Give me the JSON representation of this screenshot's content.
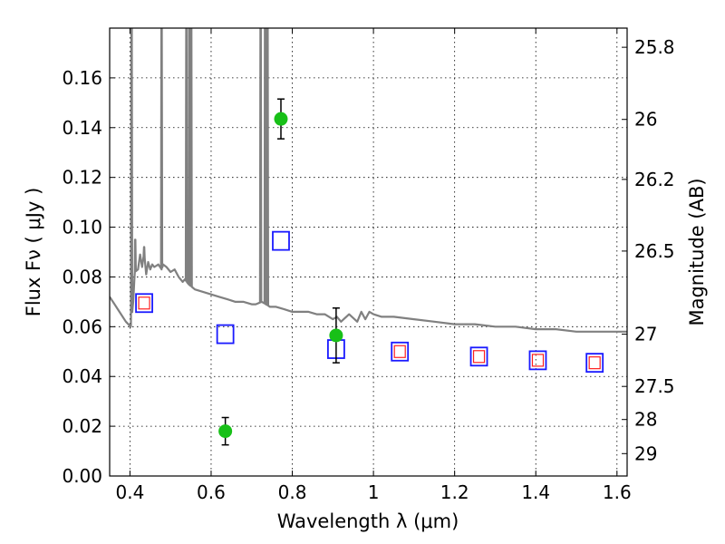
{
  "chart_data": {
    "type": "scatter",
    "xlabel": "Wavelength  λ (μm)",
    "ylabel": "Flux  Fν  ( μJy )",
    "y2label": "Magnitude (AB)",
    "xlim": [
      0.35,
      1.625
    ],
    "ylim": [
      0.0,
      0.18
    ],
    "xticks": [
      0.4,
      0.6,
      0.8,
      1.0,
      1.2,
      1.4,
      1.6
    ],
    "xtick_labels": [
      "0.4",
      "0.6",
      "0.8",
      "1",
      "1.2",
      "1.4",
      "1.6"
    ],
    "yticks": [
      0.0,
      0.02,
      0.04,
      0.06,
      0.08,
      0.1,
      0.12,
      0.14,
      0.16
    ],
    "ytick_labels": [
      "0.00",
      "0.02",
      "0.04",
      "0.06",
      "0.08",
      "0.10",
      "0.12",
      "0.14",
      "0.16"
    ],
    "y2ticks": [
      {
        "label": "25.8",
        "flux": 0.1723
      },
      {
        "label": "26",
        "flux": 0.1433
      },
      {
        "label": "26.2",
        "flux": 0.1192
      },
      {
        "label": "26.5",
        "flux": 0.0904
      },
      {
        "label": "27",
        "flux": 0.057
      },
      {
        "label": "27.5",
        "flux": 0.036
      },
      {
        "label": "28",
        "flux": 0.0227
      },
      {
        "label": "29",
        "flux": 0.009
      }
    ],
    "grid": true,
    "colors": {
      "model": "#808080",
      "observed": "#18c018",
      "model_photometry": "#1a1aff",
      "inner_photometry": "#ff2020"
    },
    "model_spectrum": {
      "x": [
        0.35,
        0.37,
        0.39,
        0.402,
        0.408,
        0.412,
        0.42,
        0.425,
        0.43,
        0.435,
        0.44,
        0.445,
        0.45,
        0.455,
        0.46,
        0.47,
        0.478,
        0.482,
        0.49,
        0.5,
        0.51,
        0.52,
        0.53,
        0.535,
        0.545,
        0.56,
        0.58,
        0.6,
        0.62,
        0.64,
        0.66,
        0.68,
        0.7,
        0.71,
        0.725,
        0.735,
        0.745,
        0.76,
        0.78,
        0.8,
        0.82,
        0.84,
        0.86,
        0.88,
        0.9,
        0.91,
        0.92,
        0.94,
        0.96,
        0.97,
        0.98,
        0.99,
        1.0,
        1.02,
        1.05,
        1.1,
        1.15,
        1.2,
        1.25,
        1.3,
        1.35,
        1.4,
        1.45,
        1.5,
        1.55,
        1.6,
        1.625
      ],
      "y": [
        0.072,
        0.067,
        0.062,
        0.06,
        0.07,
        0.082,
        0.083,
        0.089,
        0.084,
        0.09,
        0.081,
        0.086,
        0.083,
        0.085,
        0.084,
        0.085,
        0.083,
        0.085,
        0.084,
        0.082,
        0.083,
        0.08,
        0.078,
        0.079,
        0.077,
        0.075,
        0.074,
        0.073,
        0.072,
        0.071,
        0.07,
        0.07,
        0.069,
        0.069,
        0.07,
        0.069,
        0.068,
        0.068,
        0.067,
        0.066,
        0.066,
        0.066,
        0.065,
        0.065,
        0.063,
        0.064,
        0.062,
        0.065,
        0.062,
        0.066,
        0.063,
        0.066,
        0.065,
        0.064,
        0.064,
        0.063,
        0.062,
        0.061,
        0.061,
        0.06,
        0.06,
        0.059,
        0.059,
        0.058,
        0.058,
        0.058,
        0.058
      ],
      "emission_lines": [
        {
          "x": 0.404,
          "peak": 0.19
        },
        {
          "x": 0.413,
          "peak": 0.095
        },
        {
          "x": 0.435,
          "peak": 0.092
        },
        {
          "x": 0.478,
          "peak": 0.19
        },
        {
          "x": 0.539,
          "peak": 0.19
        },
        {
          "x": 0.546,
          "peak": 0.19
        },
        {
          "x": 0.551,
          "peak": 0.19
        },
        {
          "x": 0.722,
          "peak": 0.19
        },
        {
          "x": 0.733,
          "peak": 0.19
        },
        {
          "x": 0.739,
          "peak": 0.19
        }
      ]
    },
    "observed": [
      {
        "x": 0.635,
        "y": 0.018,
        "err": 0.0055
      },
      {
        "x": 0.772,
        "y": 0.1435,
        "err": 0.008
      },
      {
        "x": 0.908,
        "y": 0.0565,
        "err": 0.011
      }
    ],
    "model_photometry": [
      {
        "x": 0.435,
        "y": 0.0695
      },
      {
        "x": 0.635,
        "y": 0.057
      },
      {
        "x": 0.772,
        "y": 0.0945
      },
      {
        "x": 0.908,
        "y": 0.051
      },
      {
        "x": 1.065,
        "y": 0.05
      },
      {
        "x": 1.26,
        "y": 0.048
      },
      {
        "x": 1.405,
        "y": 0.0465
      },
      {
        "x": 1.545,
        "y": 0.0455
      }
    ],
    "inner_photometry": [
      {
        "x": 0.435,
        "y": 0.0695
      },
      {
        "x": 1.065,
        "y": 0.05
      },
      {
        "x": 1.26,
        "y": 0.048
      },
      {
        "x": 1.405,
        "y": 0.0465
      },
      {
        "x": 1.545,
        "y": 0.0455
      }
    ]
  }
}
